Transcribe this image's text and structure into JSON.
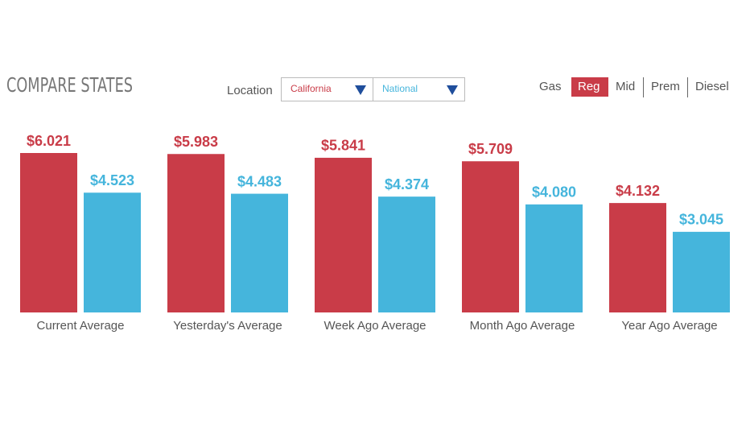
{
  "header": {
    "title": "COMPARE STATES",
    "location_label": "Location"
  },
  "fuel_tabs": [
    "Gas",
    "Reg",
    "Mid",
    "Prem",
    "Diesel"
  ],
  "chart_data": {
    "type": "bar",
    "categories": [
      "Current Average",
      "Yesterday's Average",
      "Week Ago Average",
      "Month Ago Average",
      "Year Ago Average"
    ],
    "series": [
      {
        "name": "California",
        "color": "#c93c48",
        "values": [
          6.021,
          5.983,
          5.841,
          5.709,
          4.132
        ],
        "value_labels": [
          "$6.021",
          "$5.983",
          "$5.841",
          "$5.709",
          "$4.132"
        ]
      },
      {
        "name": "National",
        "color": "#45b5dc",
        "values": [
          4.523,
          4.483,
          4.374,
          4.08,
          3.045
        ],
        "value_labels": [
          "$4.523",
          "$4.483",
          "$4.374",
          "$4.080",
          "$3.045"
        ]
      }
    ]
  }
}
